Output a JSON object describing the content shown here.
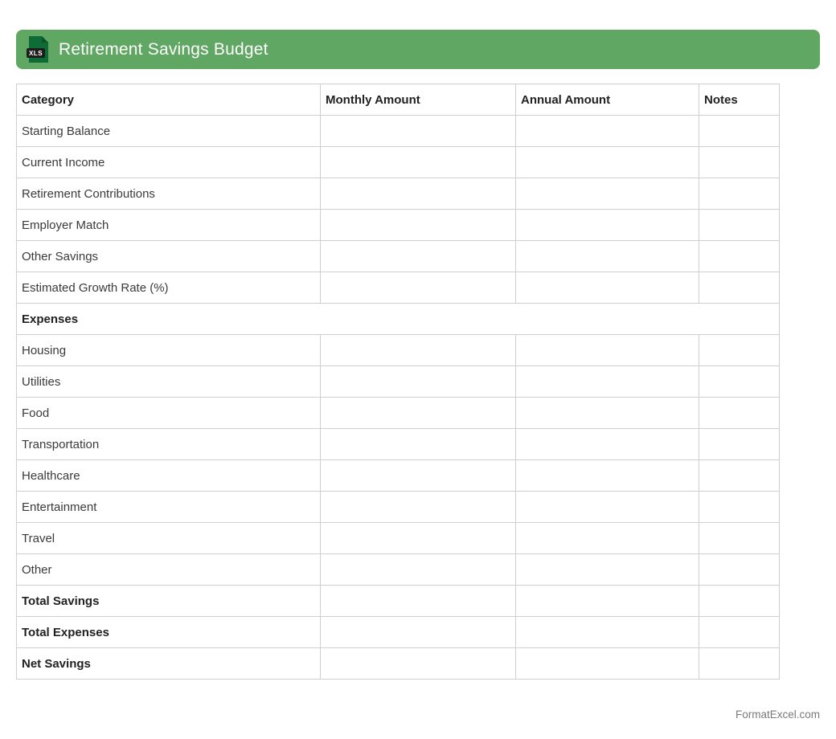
{
  "header": {
    "title": "Retirement Savings Budget",
    "file_icon_label": "XLS",
    "bar_color": "#5fa763",
    "icon_color": "#0e6b36"
  },
  "table": {
    "columns": [
      "Category",
      "Monthly Amount",
      "Annual Amount",
      "Notes"
    ],
    "rows": [
      {
        "label": "Starting Balance",
        "bold": false,
        "section": false
      },
      {
        "label": "Current Income",
        "bold": false,
        "section": false
      },
      {
        "label": "Retirement Contributions",
        "bold": false,
        "section": false
      },
      {
        "label": "Employer Match",
        "bold": false,
        "section": false
      },
      {
        "label": "Other Savings",
        "bold": false,
        "section": false
      },
      {
        "label": "Estimated Growth Rate (%)",
        "bold": false,
        "section": false
      },
      {
        "label": "Expenses",
        "bold": true,
        "section": true
      },
      {
        "label": "Housing",
        "bold": false,
        "section": false
      },
      {
        "label": "Utilities",
        "bold": false,
        "section": false
      },
      {
        "label": "Food",
        "bold": false,
        "section": false
      },
      {
        "label": "Transportation",
        "bold": false,
        "section": false
      },
      {
        "label": "Healthcare",
        "bold": false,
        "section": false
      },
      {
        "label": "Entertainment",
        "bold": false,
        "section": false
      },
      {
        "label": "Travel",
        "bold": false,
        "section": false
      },
      {
        "label": "Other",
        "bold": false,
        "section": false
      },
      {
        "label": "Total Savings",
        "bold": true,
        "section": false
      },
      {
        "label": "Total Expenses",
        "bold": true,
        "section": false
      },
      {
        "label": "Net Savings",
        "bold": true,
        "section": false
      }
    ],
    "empty_cell_value": ""
  },
  "footer": {
    "credit": "FormatExcel.com"
  }
}
